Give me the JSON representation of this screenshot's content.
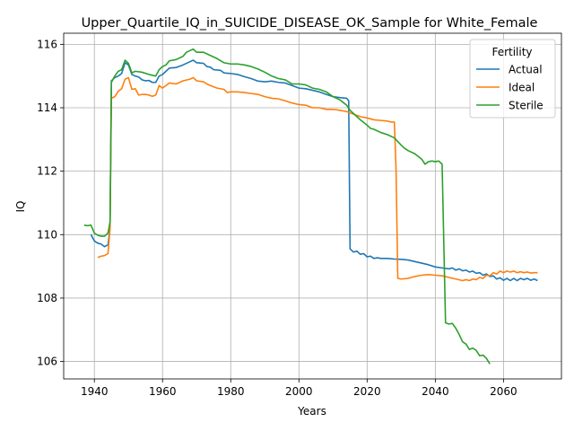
{
  "chart_data": {
    "type": "line",
    "title": "Upper_Quartile_IQ_in_SUICIDE_DISEASE_OK_Sample for White_Female",
    "xlabel": "Years",
    "ylabel": "IQ",
    "xlim": [
      1931,
      2077
    ],
    "ylim": [
      105.45,
      116.35
    ],
    "x_ticks": [
      1940,
      1960,
      1980,
      2000,
      2020,
      2040,
      2060
    ],
    "y_ticks": [
      106,
      108,
      110,
      112,
      114,
      116
    ],
    "grid": true,
    "legend": {
      "title": "Fertility",
      "placement": "top-right"
    },
    "series": [
      {
        "name": "Actual",
        "color": "#1f77b4",
        "points": [
          [
            1939,
            110.0
          ],
          [
            1940,
            109.8
          ],
          [
            1941,
            109.73
          ],
          [
            1942,
            109.7
          ],
          [
            1943,
            109.62
          ],
          [
            1944,
            109.68
          ],
          [
            1944.6,
            110.2
          ],
          [
            1945,
            114.85
          ],
          [
            1946,
            114.95
          ],
          [
            1947,
            115.0
          ],
          [
            1948,
            115.08
          ],
          [
            1949,
            115.42
          ],
          [
            1950,
            115.35
          ],
          [
            1951,
            115.05
          ],
          [
            1952,
            115.0
          ],
          [
            1953,
            114.97
          ],
          [
            1954,
            114.88
          ],
          [
            1955,
            114.85
          ],
          [
            1956,
            114.86
          ],
          [
            1957,
            114.8
          ],
          [
            1958,
            114.8
          ],
          [
            1959,
            115.0
          ],
          [
            1960,
            115.05
          ],
          [
            1961,
            115.15
          ],
          [
            1962,
            115.25
          ],
          [
            1964,
            115.27
          ],
          [
            1966,
            115.35
          ],
          [
            1968,
            115.45
          ],
          [
            1969,
            115.5
          ],
          [
            1970,
            115.42
          ],
          [
            1972,
            115.4
          ],
          [
            1973,
            115.3
          ],
          [
            1974,
            115.28
          ],
          [
            1975,
            115.2
          ],
          [
            1977,
            115.18
          ],
          [
            1978,
            115.1
          ],
          [
            1980,
            115.08
          ],
          [
            1982,
            115.05
          ],
          [
            1984,
            114.98
          ],
          [
            1986,
            114.92
          ],
          [
            1988,
            114.84
          ],
          [
            1990,
            114.82
          ],
          [
            1992,
            114.84
          ],
          [
            1994,
            114.8
          ],
          [
            1996,
            114.78
          ],
          [
            1998,
            114.7
          ],
          [
            2000,
            114.62
          ],
          [
            2002,
            114.6
          ],
          [
            2004,
            114.55
          ],
          [
            2006,
            114.5
          ],
          [
            2008,
            114.42
          ],
          [
            2010,
            114.35
          ],
          [
            2012,
            114.32
          ],
          [
            2014,
            114.3
          ],
          [
            2014.6,
            114.22
          ],
          [
            2015,
            109.55
          ],
          [
            2016,
            109.45
          ],
          [
            2017,
            109.48
          ],
          [
            2018,
            109.38
          ],
          [
            2019,
            109.4
          ],
          [
            2020,
            109.3
          ],
          [
            2021,
            109.32
          ],
          [
            2022,
            109.25
          ],
          [
            2023,
            109.27
          ],
          [
            2024,
            109.25
          ],
          [
            2026,
            109.25
          ],
          [
            2028,
            109.23
          ],
          [
            2030,
            109.22
          ],
          [
            2032,
            109.2
          ],
          [
            2034,
            109.15
          ],
          [
            2036,
            109.1
          ],
          [
            2038,
            109.05
          ],
          [
            2040,
            108.98
          ],
          [
            2042,
            108.95
          ],
          [
            2044,
            108.92
          ],
          [
            2045,
            108.95
          ],
          [
            2046,
            108.88
          ],
          [
            2047,
            108.92
          ],
          [
            2048,
            108.86
          ],
          [
            2049,
            108.88
          ],
          [
            2050,
            108.82
          ],
          [
            2051,
            108.85
          ],
          [
            2052,
            108.78
          ],
          [
            2053,
            108.8
          ],
          [
            2054,
            108.72
          ],
          [
            2055,
            108.76
          ],
          [
            2056,
            108.68
          ],
          [
            2057,
            108.7
          ],
          [
            2058,
            108.6
          ],
          [
            2059,
            108.64
          ],
          [
            2060,
            108.56
          ],
          [
            2061,
            108.62
          ],
          [
            2062,
            108.55
          ],
          [
            2063,
            108.62
          ],
          [
            2064,
            108.55
          ],
          [
            2065,
            108.62
          ],
          [
            2066,
            108.58
          ],
          [
            2067,
            108.62
          ],
          [
            2068,
            108.56
          ],
          [
            2069,
            108.6
          ],
          [
            2070,
            108.55
          ]
        ]
      },
      {
        "name": "Ideal",
        "color": "#ff7f0e",
        "points": [
          [
            1941,
            109.28
          ],
          [
            1942,
            109.32
          ],
          [
            1943,
            109.34
          ],
          [
            1944,
            109.4
          ],
          [
            1944.6,
            110.2
          ],
          [
            1945,
            114.3
          ],
          [
            1946,
            114.35
          ],
          [
            1947,
            114.52
          ],
          [
            1948,
            114.6
          ],
          [
            1949,
            114.9
          ],
          [
            1950,
            114.95
          ],
          [
            1951,
            114.58
          ],
          [
            1952,
            114.6
          ],
          [
            1953,
            114.4
          ],
          [
            1954,
            114.42
          ],
          [
            1955,
            114.42
          ],
          [
            1956,
            114.4
          ],
          [
            1957,
            114.36
          ],
          [
            1958,
            114.4
          ],
          [
            1959,
            114.7
          ],
          [
            1960,
            114.62
          ],
          [
            1961,
            114.7
          ],
          [
            1962,
            114.78
          ],
          [
            1964,
            114.75
          ],
          [
            1965,
            114.8
          ],
          [
            1966,
            114.85
          ],
          [
            1968,
            114.9
          ],
          [
            1969,
            114.95
          ],
          [
            1970,
            114.85
          ],
          [
            1972,
            114.82
          ],
          [
            1973,
            114.75
          ],
          [
            1974,
            114.7
          ],
          [
            1976,
            114.62
          ],
          [
            1978,
            114.58
          ],
          [
            1979,
            114.48
          ],
          [
            1980,
            114.5
          ],
          [
            1982,
            114.5
          ],
          [
            1984,
            114.48
          ],
          [
            1986,
            114.45
          ],
          [
            1988,
            114.42
          ],
          [
            1990,
            114.35
          ],
          [
            1992,
            114.3
          ],
          [
            1994,
            114.28
          ],
          [
            1996,
            114.22
          ],
          [
            1998,
            114.15
          ],
          [
            2000,
            114.1
          ],
          [
            2002,
            114.08
          ],
          [
            2004,
            114.0
          ],
          [
            2006,
            114.0
          ],
          [
            2008,
            113.95
          ],
          [
            2010,
            113.95
          ],
          [
            2012,
            113.92
          ],
          [
            2014,
            113.88
          ],
          [
            2016,
            113.8
          ],
          [
            2018,
            113.72
          ],
          [
            2020,
            113.68
          ],
          [
            2022,
            113.62
          ],
          [
            2024,
            113.6
          ],
          [
            2026,
            113.58
          ],
          [
            2027,
            113.55
          ],
          [
            2028,
            113.55
          ],
          [
            2028.5,
            112.0
          ],
          [
            2029,
            108.62
          ],
          [
            2030,
            108.6
          ],
          [
            2032,
            108.62
          ],
          [
            2034,
            108.68
          ],
          [
            2036,
            108.72
          ],
          [
            2038,
            108.74
          ],
          [
            2040,
            108.72
          ],
          [
            2042,
            108.7
          ],
          [
            2044,
            108.65
          ],
          [
            2046,
            108.6
          ],
          [
            2048,
            108.55
          ],
          [
            2049,
            108.58
          ],
          [
            2050,
            108.55
          ],
          [
            2051,
            108.6
          ],
          [
            2052,
            108.58
          ],
          [
            2053,
            108.65
          ],
          [
            2054,
            108.62
          ],
          [
            2055,
            108.72
          ],
          [
            2056,
            108.7
          ],
          [
            2057,
            108.8
          ],
          [
            2058,
            108.76
          ],
          [
            2059,
            108.85
          ],
          [
            2060,
            108.8
          ],
          [
            2061,
            108.85
          ],
          [
            2062,
            108.82
          ],
          [
            2063,
            108.85
          ],
          [
            2064,
            108.8
          ],
          [
            2065,
            108.83
          ],
          [
            2066,
            108.8
          ],
          [
            2067,
            108.82
          ],
          [
            2068,
            108.79
          ],
          [
            2069,
            108.8
          ],
          [
            2070,
            108.8
          ]
        ]
      },
      {
        "name": "Sterile",
        "color": "#2ca02c",
        "points": [
          [
            1937,
            110.3
          ],
          [
            1938,
            110.28
          ],
          [
            1939,
            110.3
          ],
          [
            1940,
            110.05
          ],
          [
            1941,
            109.98
          ],
          [
            1942,
            109.95
          ],
          [
            1943,
            109.95
          ],
          [
            1944,
            110.05
          ],
          [
            1944.6,
            110.4
          ],
          [
            1945,
            114.8
          ],
          [
            1946,
            115.0
          ],
          [
            1947,
            115.15
          ],
          [
            1948,
            115.2
          ],
          [
            1949,
            115.5
          ],
          [
            1950,
            115.4
          ],
          [
            1951,
            115.1
          ],
          [
            1952,
            115.15
          ],
          [
            1954,
            115.12
          ],
          [
            1956,
            115.05
          ],
          [
            1958,
            115.0
          ],
          [
            1959,
            115.2
          ],
          [
            1960,
            115.3
          ],
          [
            1961,
            115.35
          ],
          [
            1962,
            115.48
          ],
          [
            1964,
            115.52
          ],
          [
            1966,
            115.62
          ],
          [
            1967,
            115.75
          ],
          [
            1968,
            115.8
          ],
          [
            1969,
            115.85
          ],
          [
            1970,
            115.75
          ],
          [
            1972,
            115.75
          ],
          [
            1974,
            115.65
          ],
          [
            1976,
            115.55
          ],
          [
            1978,
            115.42
          ],
          [
            1980,
            115.38
          ],
          [
            1982,
            115.38
          ],
          [
            1984,
            115.35
          ],
          [
            1986,
            115.3
          ],
          [
            1988,
            115.22
          ],
          [
            1990,
            115.12
          ],
          [
            1992,
            115.0
          ],
          [
            1994,
            114.92
          ],
          [
            1996,
            114.88
          ],
          [
            1998,
            114.75
          ],
          [
            2000,
            114.75
          ],
          [
            2002,
            114.72
          ],
          [
            2004,
            114.62
          ],
          [
            2006,
            114.58
          ],
          [
            2008,
            114.5
          ],
          [
            2010,
            114.35
          ],
          [
            2012,
            114.25
          ],
          [
            2014,
            114.08
          ],
          [
            2015,
            113.92
          ],
          [
            2016,
            113.82
          ],
          [
            2018,
            113.62
          ],
          [
            2020,
            113.45
          ],
          [
            2021,
            113.35
          ],
          [
            2022,
            113.32
          ],
          [
            2024,
            113.22
          ],
          [
            2026,
            113.15
          ],
          [
            2028,
            113.05
          ],
          [
            2030,
            112.82
          ],
          [
            2031,
            112.72
          ],
          [
            2032,
            112.65
          ],
          [
            2034,
            112.55
          ],
          [
            2036,
            112.38
          ],
          [
            2037,
            112.22
          ],
          [
            2038,
            112.3
          ],
          [
            2039,
            112.32
          ],
          [
            2040,
            112.3
          ],
          [
            2041,
            112.32
          ],
          [
            2042,
            112.22
          ],
          [
            2043,
            107.22
          ],
          [
            2044,
            107.18
          ],
          [
            2045,
            107.2
          ],
          [
            2046,
            107.05
          ],
          [
            2047,
            106.85
          ],
          [
            2048,
            106.62
          ],
          [
            2049,
            106.55
          ],
          [
            2050,
            106.38
          ],
          [
            2051,
            106.42
          ],
          [
            2052,
            106.35
          ],
          [
            2053,
            106.18
          ],
          [
            2054,
            106.2
          ],
          [
            2055,
            106.1
          ],
          [
            2056,
            105.92
          ]
        ]
      }
    ]
  }
}
